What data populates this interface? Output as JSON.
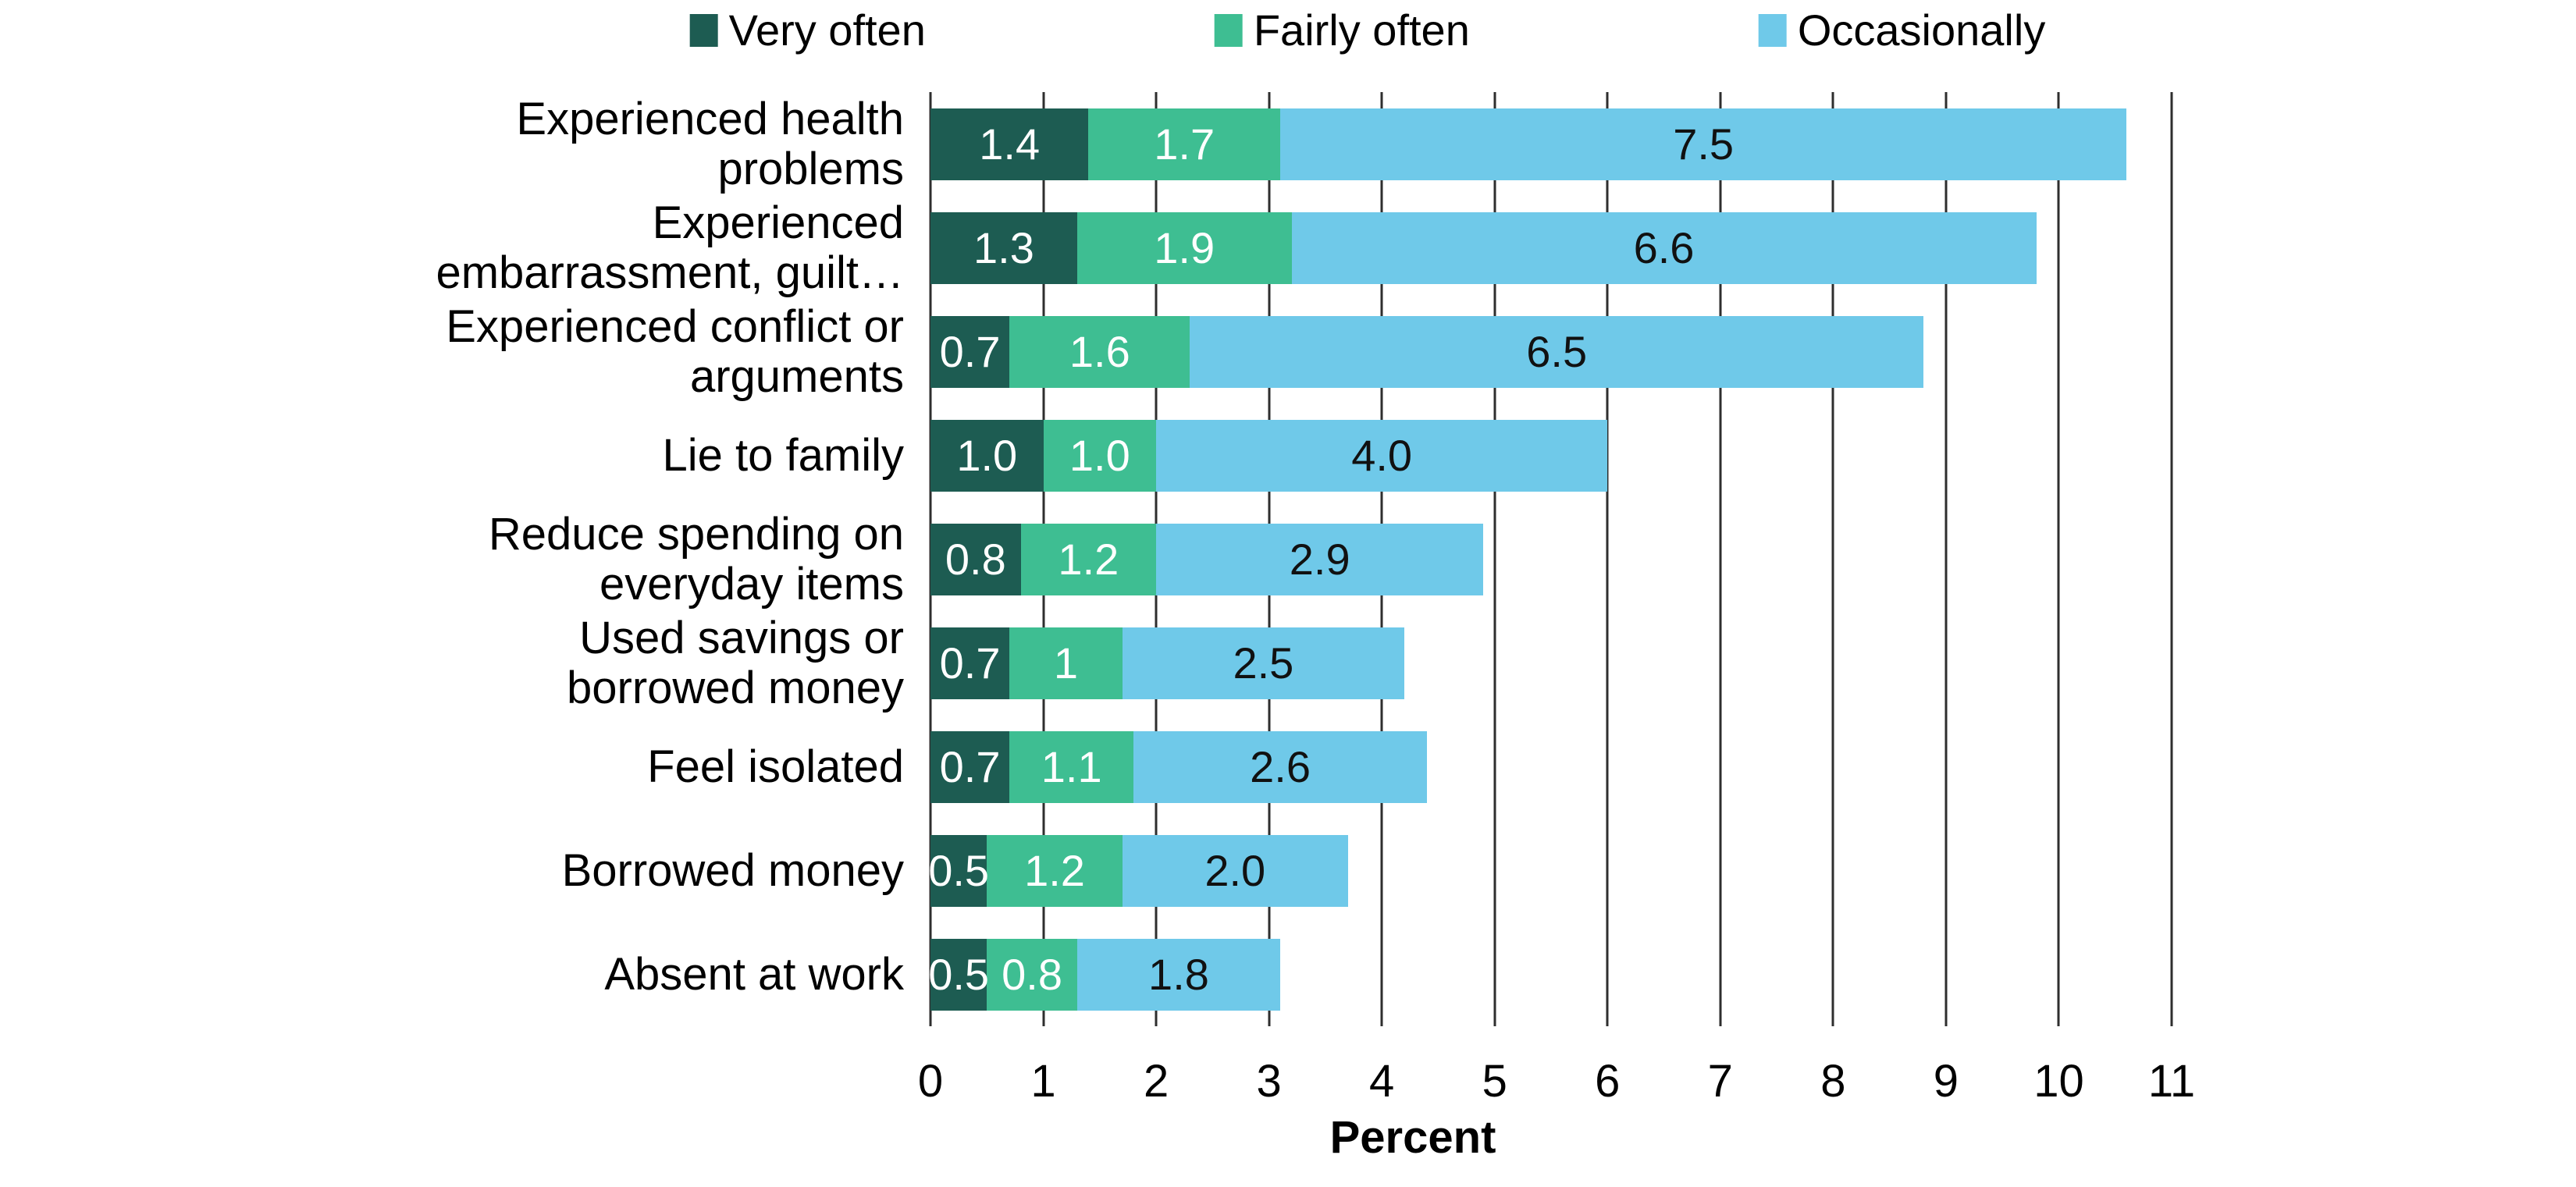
{
  "legend": {
    "position": "top",
    "items": [
      {
        "label": "Very often",
        "color": "#1D5C52"
      },
      {
        "label": "Fairly often",
        "color": "#3EBE92"
      },
      {
        "label": "Occasionally",
        "color": "#6FC9E9"
      }
    ]
  },
  "chart_data": {
    "type": "bar",
    "orientation": "horizontal",
    "stacked": true,
    "title": "",
    "xlabel": "Percent",
    "ylabel": "",
    "xlim": [
      0,
      11
    ],
    "x_ticks": [
      "0",
      "1",
      "2",
      "3",
      "4",
      "5",
      "6",
      "7",
      "8",
      "9",
      "10",
      "11"
    ],
    "grid": "vertical",
    "gridline_color": "#2e2e2e",
    "categories": [
      "Experienced health\nproblems",
      "Experienced\nembarrassment, guilt…",
      "Experienced conflict or\narguments",
      "Lie to family",
      "Reduce spending on\neveryday items",
      "Used savings or\nborrowed money",
      "Feel isolated",
      "Borrowed money",
      "Absent at work"
    ],
    "series": [
      {
        "name": "Very often",
        "color": "#1D5C52",
        "label_color": "#ffffff",
        "values": [
          1.4,
          1.3,
          0.7,
          1.0,
          0.8,
          0.7,
          0.7,
          0.5,
          0.5
        ],
        "labels": [
          "1.4",
          "1.3",
          "0.7",
          "1.0",
          "0.8",
          "0.7",
          "0.7",
          "0.5",
          "0.5"
        ]
      },
      {
        "name": "Fairly often",
        "color": "#3EBE92",
        "label_color": "#ffffff",
        "values": [
          1.7,
          1.9,
          1.6,
          1.0,
          1.2,
          1.0,
          1.1,
          1.2,
          0.8
        ],
        "labels": [
          "1.7",
          "1.9",
          "1.6",
          "1.0",
          "1.2",
          "1",
          "1.1",
          "1.2",
          "0.8"
        ]
      },
      {
        "name": "Occasionally",
        "color": "#6FC9E9",
        "label_color": "#111111",
        "values": [
          7.5,
          6.6,
          6.5,
          4.0,
          2.9,
          2.5,
          2.6,
          2.0,
          1.8
        ],
        "labels": [
          "7.5",
          "6.6",
          "6.5",
          "4.0",
          "2.9",
          "2.5",
          "2.6",
          "2.0",
          "1.8"
        ]
      }
    ]
  }
}
